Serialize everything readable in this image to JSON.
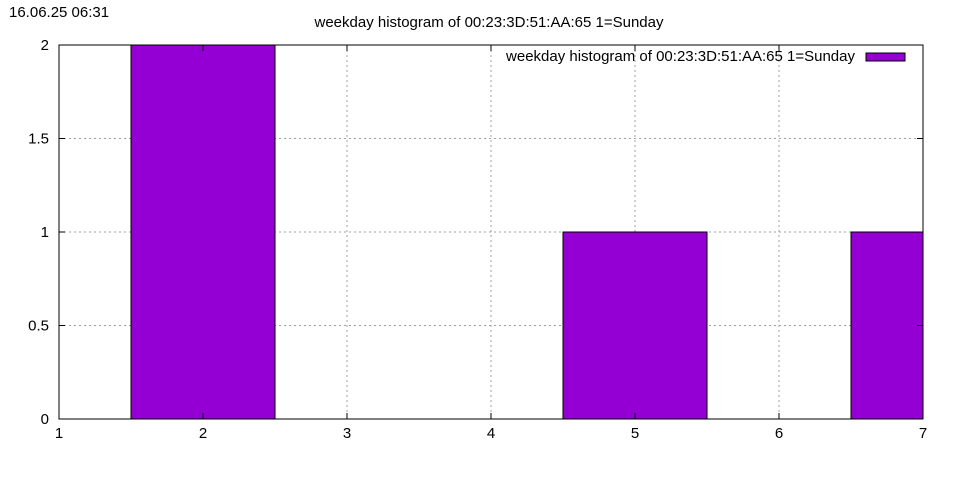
{
  "timestamp": "16.06.25 06:31",
  "colors": {
    "bar": "#9400d3",
    "grid": "#a0a0a0",
    "axis": "#000000"
  },
  "chart_data": {
    "type": "bar",
    "title": "weekday histogram of 00:23:3D:51:AA:65 1=Sunday",
    "xlabel": "",
    "ylabel": "",
    "xlim": [
      1,
      7
    ],
    "ylim": [
      0,
      2
    ],
    "grid": true,
    "legend": {
      "placement": "top-right",
      "entries": [
        "weekday histogram of 00:23:3D:51:AA:65 1=Sunday"
      ]
    },
    "x_ticks": [
      "1",
      "2",
      "3",
      "4",
      "5",
      "6",
      "7"
    ],
    "y_ticks": [
      "0",
      "0.5",
      "1",
      "1.5",
      "2"
    ],
    "series": [
      {
        "name": "weekday histogram of 00:23:3D:51:AA:65 1=Sunday",
        "x": [
          2,
          5,
          7
        ],
        "values": [
          2,
          1,
          1
        ]
      }
    ]
  }
}
